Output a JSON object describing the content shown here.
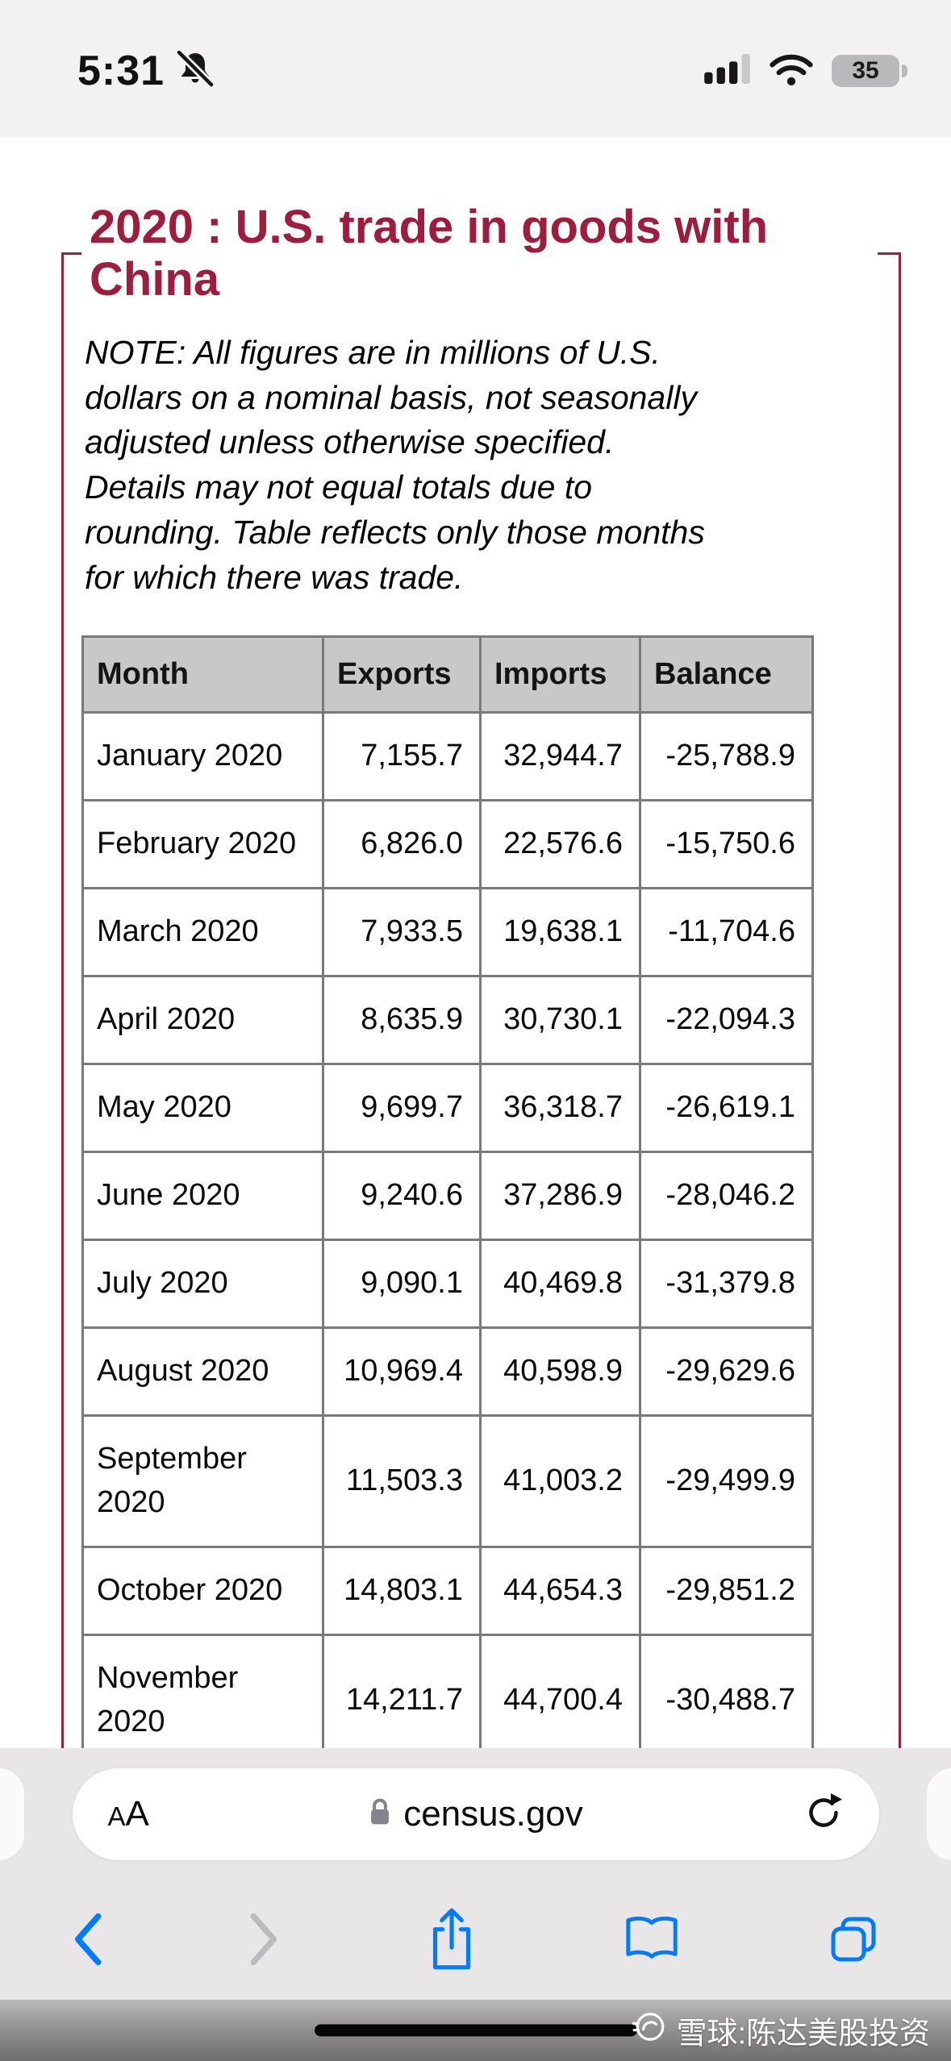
{
  "status_bar": {
    "time": "5:31",
    "battery_level": "35"
  },
  "page": {
    "title": "2020 : U.S. trade in goods with China",
    "note": "NOTE: All figures are in millions of U.S. dollars on a nominal basis, not seasonally adjusted unless otherwise specified. Details may not equal totals due to rounding. Table reflects only those months for which there was trade.",
    "table": {
      "headers": [
        "Month",
        "Exports",
        "Imports",
        "Balance"
      ],
      "rows": [
        [
          "January 2020",
          "7,155.7",
          "32,944.7",
          "-25,788.9"
        ],
        [
          "February 2020",
          "6,826.0",
          "22,576.6",
          "-15,750.6"
        ],
        [
          "March 2020",
          "7,933.5",
          "19,638.1",
          "-11,704.6"
        ],
        [
          "April 2020",
          "8,635.9",
          "30,730.1",
          "-22,094.3"
        ],
        [
          "May 2020",
          "9,699.7",
          "36,318.7",
          "-26,619.1"
        ],
        [
          "June 2020",
          "9,240.6",
          "37,286.9",
          "-28,046.2"
        ],
        [
          "July 2020",
          "9,090.1",
          "40,469.8",
          "-31,379.8"
        ],
        [
          "August 2020",
          "10,969.4",
          "40,598.9",
          "-29,629.6"
        ],
        [
          "September 2020",
          "11,503.3",
          "41,003.2",
          "-29,499.9"
        ],
        [
          "October 2020",
          "14,803.1",
          "44,654.3",
          "-29,851.2"
        ],
        [
          "November 2020",
          "14,211.7",
          "44,700.4",
          "-30,488.7"
        ]
      ]
    }
  },
  "browser": {
    "reader_button_label": "AA",
    "address": "census.gov"
  },
  "watermark_text": "雪球:陈达美股投资",
  "colors": {
    "title_maroon": "#9d1d3d",
    "ios_blue": "#007aff",
    "table_header_bg": "#c8c8c8",
    "status_bar_bg": "#f3f1f2"
  }
}
